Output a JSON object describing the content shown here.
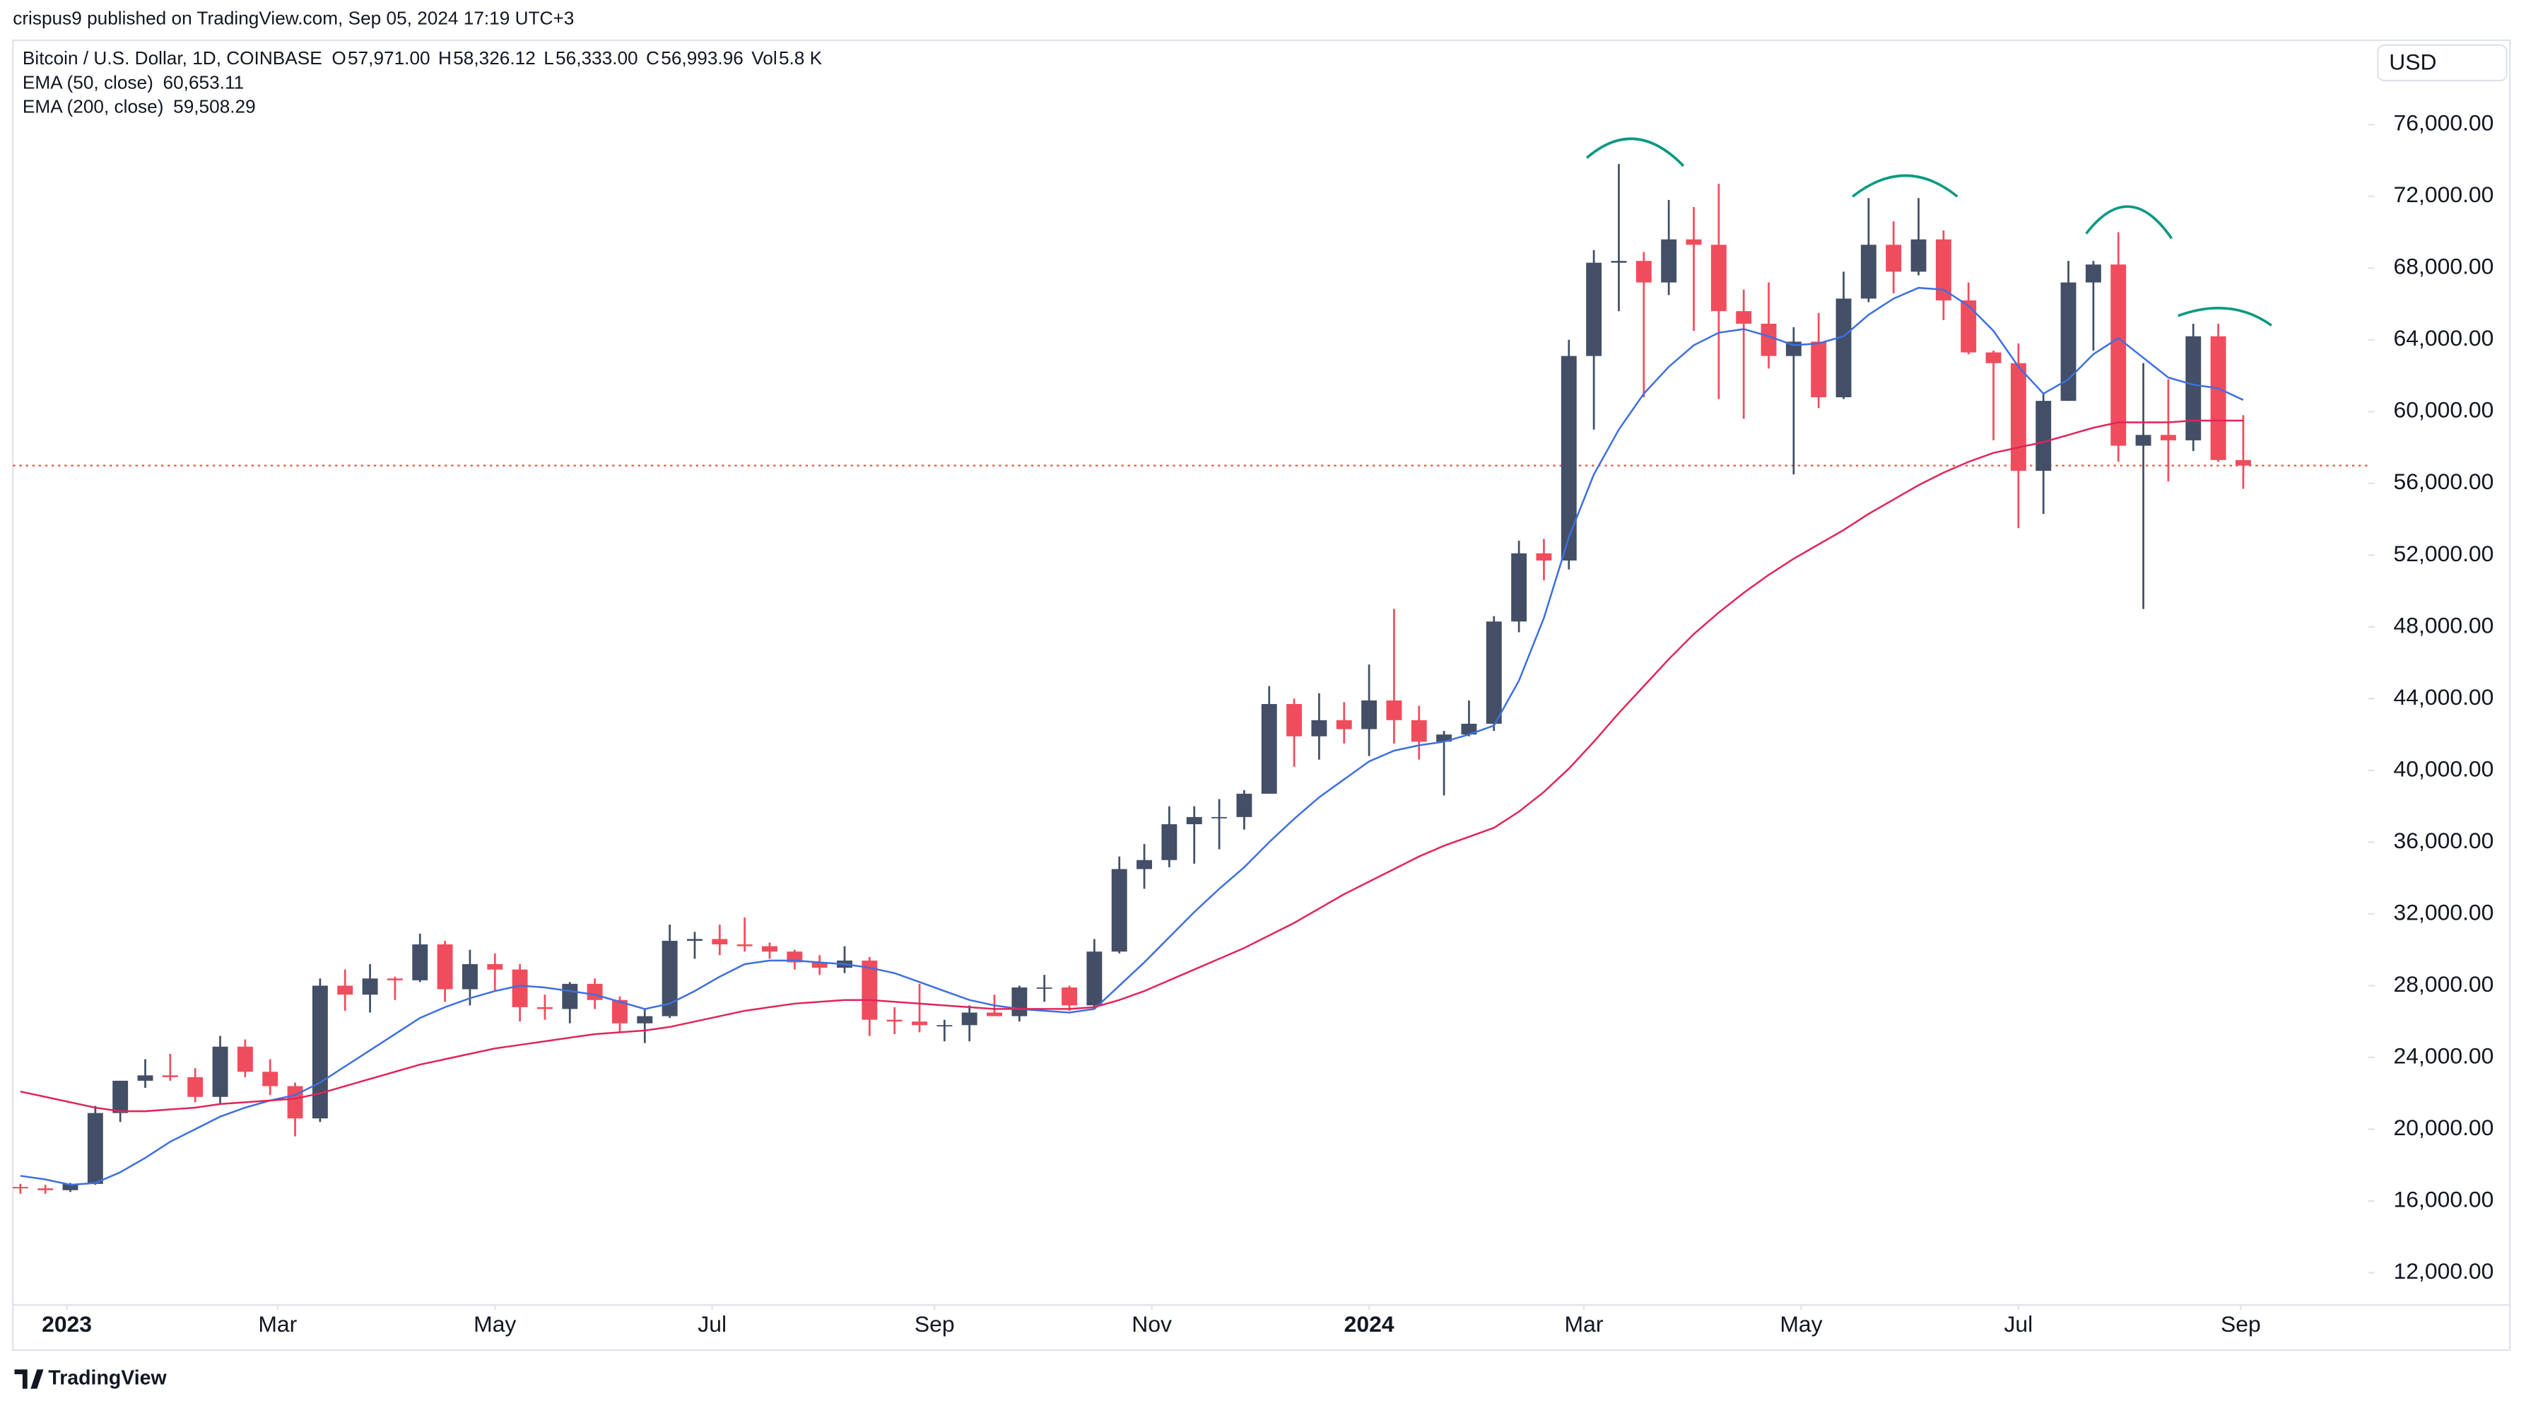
{
  "chart_data": {
    "type": "candlestick",
    "publisher": "crispus9 published on TradingView.com, Sep 05, 2024 17:19 UTC+3",
    "title": "Bitcoin / U.S. Dollar, 1D, COINBASE",
    "ohlc_legend": [
      {
        "key": "O",
        "value": "57,971.00"
      },
      {
        "key": "H",
        "value": "58,326.12"
      },
      {
        "key": "L",
        "value": "56,333.00"
      },
      {
        "key": "C",
        "value": "56,993.96"
      },
      {
        "key": "Vol",
        "value": "5.8 K"
      }
    ],
    "currency": "USD",
    "footer": "TradingView",
    "up_color": "#434f66",
    "down_color": "#ef4d5d",
    "open": [
      16780,
      16700,
      16600,
      16950,
      20900,
      22700,
      23000,
      22900,
      21800,
      24600,
      23200,
      22400,
      20600,
      28000,
      27500,
      28400,
      28300,
      30300,
      27800,
      29200,
      28900,
      26800,
      26700,
      28100,
      27200,
      25900,
      26300,
      30500,
      30600,
      30300,
      30200,
      29900,
      29300,
      29000,
      29400,
      26100,
      26000,
      25800,
      25800,
      26500,
      26300,
      27900,
      27900,
      26900,
      29900,
      34500,
      35000,
      37000,
      37400,
      37400,
      38700,
      43700,
      41900,
      42800,
      42300,
      43900,
      42800,
      41600,
      42000,
      42600,
      48300,
      52100,
      51700,
      63100,
      68300,
      68400,
      67200,
      69600,
      69300,
      65600,
      64900,
      63100,
      63900,
      60800,
      66300,
      69300,
      67800,
      69600,
      66200,
      63300,
      62700,
      56700,
      60600,
      67200,
      68200,
      58100,
      58700,
      58400,
      64200,
      57300
    ],
    "high": [
      16950,
      16900,
      17000,
      21300,
      22700,
      23900,
      24200,
      23400,
      25200,
      25000,
      23900,
      22600,
      28400,
      28900,
      29200,
      28500,
      30900,
      30500,
      30000,
      29800,
      29200,
      27500,
      28200,
      28400,
      27400,
      26700,
      31400,
      31000,
      31400,
      31800,
      30400,
      30000,
      29700,
      30200,
      29600,
      26800,
      28100,
      26100,
      26900,
      27500,
      28000,
      28600,
      28000,
      30600,
      35200,
      35900,
      38000,
      38000,
      38400,
      38900,
      44700,
      44000,
      44300,
      43800,
      45900,
      49000,
      43600,
      42200,
      43900,
      48600,
      52800,
      52900,
      64000,
      69000,
      73800,
      68900,
      71800,
      71400,
      72700,
      66800,
      67200,
      64700,
      65500,
      67800,
      71900,
      70600,
      71900,
      70100,
      67200,
      63400,
      63800,
      61000,
      68400,
      68400,
      70000,
      62700,
      61800,
      64900,
      64900,
      59800
    ],
    "low": [
      16400,
      16400,
      16500,
      16900,
      20400,
      22300,
      22700,
      21500,
      21400,
      22900,
      21900,
      19600,
      20400,
      26600,
      26500,
      27200,
      28200,
      27100,
      26900,
      27700,
      26000,
      26100,
      25900,
      26700,
      25400,
      24800,
      26200,
      29500,
      29700,
      29900,
      29500,
      28900,
      28600,
      28700,
      25200,
      25300,
      25400,
      24900,
      24900,
      26300,
      26000,
      27100,
      26600,
      26800,
      29800,
      33400,
      34600,
      34800,
      35600,
      36700,
      38700,
      40200,
      40600,
      41500,
      40800,
      41500,
      40600,
      38600,
      41900,
      42200,
      47700,
      50600,
      51200,
      59000,
      65600,
      60800,
      66500,
      64500,
      60700,
      59600,
      62400,
      56500,
      60200,
      60700,
      66100,
      66600,
      67600,
      65100,
      63200,
      58400,
      53500,
      54300,
      60600,
      63400,
      57200,
      49000,
      56100,
      57800,
      57200,
      55700
    ],
    "close": [
      16700,
      16600,
      16950,
      20900,
      22700,
      23000,
      22900,
      21800,
      24600,
      23200,
      22400,
      20600,
      28000,
      27500,
      28400,
      28300,
      30300,
      27800,
      29200,
      28900,
      26800,
      26700,
      28100,
      27200,
      25900,
      26300,
      30500,
      30600,
      30300,
      30200,
      29900,
      29300,
      29000,
      29400,
      26100,
      26000,
      25800,
      25800,
      26500,
      26300,
      27900,
      27900,
      26900,
      29900,
      34500,
      35000,
      37000,
      37400,
      37400,
      38700,
      43700,
      41900,
      42800,
      42300,
      43900,
      42800,
      41600,
      42000,
      42600,
      48300,
      52100,
      51700,
      63100,
      68300,
      68400,
      67200,
      69600,
      69300,
      65600,
      64900,
      63100,
      63900,
      60800,
      66300,
      69300,
      67800,
      69600,
      66200,
      63300,
      62700,
      56700,
      60600,
      67200,
      68200,
      58100,
      58700,
      58400,
      64200,
      57300,
      56994
    ],
    "series": [
      {
        "name": "EMA (50, close)",
        "color": "#3d6fe0",
        "last_value": {
          "value": 60653.11,
          "label": "60,653.11"
        },
        "values": [
          17400,
          17200,
          16900,
          17000,
          17600,
          18400,
          19300,
          20000,
          20700,
          21200,
          21600,
          21900,
          22600,
          23500,
          24400,
          25300,
          26200,
          26800,
          27300,
          27700,
          28000,
          27900,
          27700,
          27500,
          27100,
          26700,
          27000,
          27700,
          28500,
          29200,
          29400,
          29400,
          29300,
          29200,
          29000,
          28700,
          28200,
          27700,
          27200,
          26900,
          26700,
          26600,
          26500,
          26700,
          28000,
          29300,
          30700,
          32100,
          33400,
          34600,
          36000,
          37300,
          38500,
          39500,
          40500,
          41100,
          41400,
          41600,
          42000,
          42500,
          45000,
          48500,
          53000,
          56500,
          59000,
          61000,
          62500,
          63700,
          64400,
          64600,
          64200,
          63700,
          63800,
          64200,
          65400,
          66300,
          66900,
          66800,
          65900,
          64500,
          62500,
          61000,
          61800,
          63200,
          64100,
          63000,
          61900,
          61500,
          61300,
          60650
        ]
      },
      {
        "name": "EMA (200, close)",
        "color": "#e0255a",
        "last_value": {
          "value": 59508.29,
          "label": "59,508.29"
        },
        "values": [
          22100,
          21800,
          21500,
          21200,
          21000,
          21000,
          21100,
          21200,
          21400,
          21500,
          21600,
          21700,
          22000,
          22400,
          22800,
          23200,
          23600,
          23900,
          24200,
          24500,
          24700,
          24900,
          25100,
          25300,
          25400,
          25500,
          25700,
          26000,
          26300,
          26600,
          26800,
          27000,
          27100,
          27200,
          27200,
          27100,
          27000,
          26900,
          26800,
          26700,
          26700,
          26700,
          26700,
          26800,
          27200,
          27700,
          28300,
          28900,
          29500,
          30100,
          30800,
          31500,
          32300,
          33100,
          33800,
          34500,
          35200,
          35800,
          36300,
          36800,
          37700,
          38800,
          40100,
          41600,
          43200,
          44700,
          46200,
          47600,
          48800,
          49900,
          50900,
          51800,
          52600,
          53400,
          54300,
          55100,
          55900,
          56600,
          57200,
          57700,
          58000,
          58300,
          58700,
          59100,
          59400,
          59400,
          59400,
          59500,
          59500,
          59500
        ]
      }
    ],
    "last_price": 56993.96,
    "price_line_color": "#e8554a",
    "xlim": [
      -0.3,
      94
    ],
    "xticks": [
      {
        "value": 1.86,
        "label": "2023"
      },
      {
        "value": 10.3,
        "label": "Mar"
      },
      {
        "value": 19.0,
        "label": "May"
      },
      {
        "value": 27.7,
        "label": "Jul"
      },
      {
        "value": 36.6,
        "label": "Sep"
      },
      {
        "value": 45.3,
        "label": "Nov"
      },
      {
        "value": 54.0,
        "label": "2024"
      },
      {
        "value": 62.6,
        "label": "Mar"
      },
      {
        "value": 71.3,
        "label": "May"
      },
      {
        "value": 80.0,
        "label": "Jul"
      },
      {
        "value": 88.9,
        "label": "Sep"
      }
    ],
    "ylim": [
      10200,
      80700
    ],
    "yticks": [
      {
        "value": 12000,
        "label": "12,000.00"
      },
      {
        "value": 16000,
        "label": "16,000.00"
      },
      {
        "value": 20000,
        "label": "20,000.00"
      },
      {
        "value": 24000,
        "label": "24,000.00"
      },
      {
        "value": 28000,
        "label": "28,000.00"
      },
      {
        "value": 32000,
        "label": "32,000.00"
      },
      {
        "value": 36000,
        "label": "36,000.00"
      },
      {
        "value": 40000,
        "label": "40,000.00"
      },
      {
        "value": 44000,
        "label": "44,000.00"
      },
      {
        "value": 48000,
        "label": "48,000.00"
      },
      {
        "value": 52000,
        "label": "52,000.00"
      },
      {
        "value": 56000,
        "label": "56,000.00"
      },
      {
        "value": 60000,
        "label": "60,000.00"
      },
      {
        "value": 64000,
        "label": "64,000.00"
      },
      {
        "value": 68000,
        "label": "68,000.00"
      },
      {
        "value": 72000,
        "label": "72,000.00"
      },
      {
        "value": 76000,
        "label": "76,000.00"
      }
    ]
  }
}
